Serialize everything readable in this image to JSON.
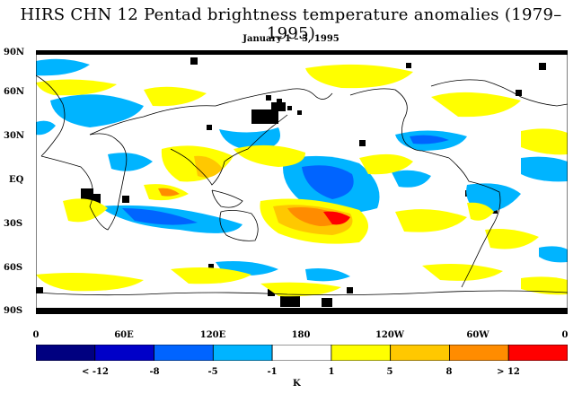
{
  "title": "HIRS CHN 12 Pentad brightness temperature anomalies (1979–1995)",
  "subtitle": "January 1 – 5, 1995",
  "lat_labels": [
    "90N",
    "60N",
    "30N",
    "EQ",
    "30S",
    "60S",
    "90S"
  ],
  "lon_labels": [
    "0",
    "60E",
    "120E",
    "180",
    "120W",
    "60W",
    "0"
  ],
  "colorbar": {
    "colors": [
      "#000080",
      "#0000c8",
      "#0064ff",
      "#00b4ff",
      "#ffffff",
      "#ffff00",
      "#ffc800",
      "#ff8c00",
      "#ff0000"
    ],
    "tick_labels": [
      "< -12",
      "-8",
      "-5",
      "-1",
      "1",
      "5",
      "8",
      "> 12"
    ],
    "unit": "K"
  },
  "missing_data_color": "#000000"
}
